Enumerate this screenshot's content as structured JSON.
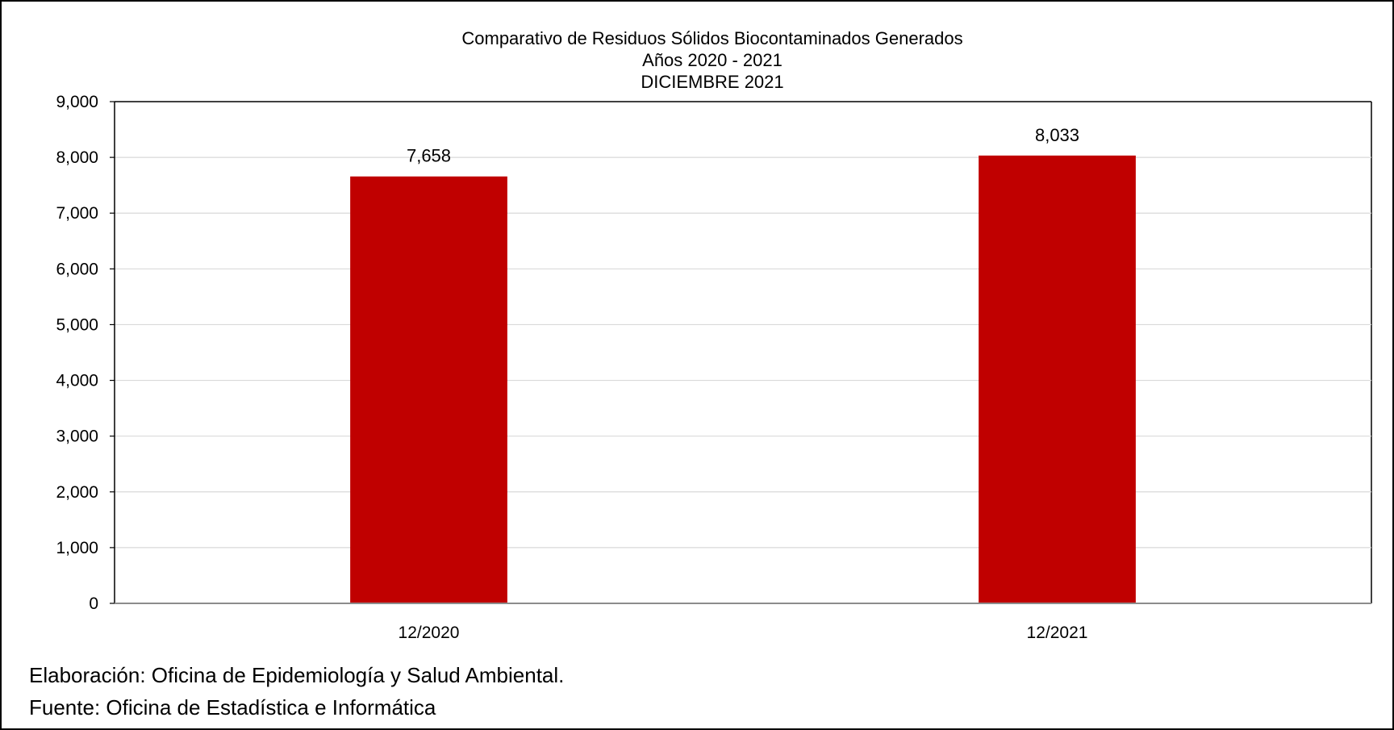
{
  "chart_data": {
    "type": "bar",
    "title": "Comparativo de Residuos Sólidos Biocontaminados Generados",
    "subtitle": [
      "Años 2020 - 2021",
      "DICIEMBRE 2021"
    ],
    "categories": [
      "12/2020",
      "12/2021"
    ],
    "values": [
      7658,
      8033
    ],
    "data_labels": [
      "7,658",
      "8,033"
    ],
    "ylim": [
      0,
      9000
    ],
    "yticks": [
      0,
      1000,
      2000,
      3000,
      4000,
      5000,
      6000,
      7000,
      8000,
      9000
    ],
    "ytick_labels": [
      "0",
      "1,000",
      "2,000",
      "3,000",
      "4,000",
      "5,000",
      "6,000",
      "7,000",
      "8,000",
      "9,000"
    ],
    "grid": true,
    "bar_color": "#c00000",
    "xlabel": "",
    "ylabel": ""
  },
  "footer": {
    "elaboracion": "Elaboración: Oficina de Epidemiología y Salud Ambiental.",
    "fuente": "Fuente:  Oficina de Estadística e Informática"
  }
}
